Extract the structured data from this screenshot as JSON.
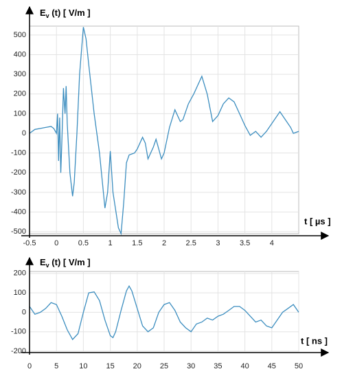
{
  "chart_data": [
    {
      "type": "line",
      "y_label": {
        "main": "E",
        "sub": "v",
        "rest": " (t) [ V/m ]"
      },
      "x_label": "t [ µs ]",
      "color": "#3b8dbf",
      "grid": true,
      "xlim": [
        -0.5,
        4.5
      ],
      "ylim": [
        -510,
        545
      ],
      "xticks": [
        -0.5,
        0,
        0.5,
        1,
        1.5,
        2,
        2.5,
        3,
        3.5,
        4
      ],
      "yticks": [
        -500,
        -400,
        -300,
        -200,
        -100,
        0,
        100,
        200,
        300,
        400,
        500
      ],
      "x": [
        -0.5,
        -0.4,
        -0.3,
        -0.2,
        -0.1,
        -0.05,
        0,
        0.02,
        0.04,
        0.06,
        0.08,
        0.1,
        0.13,
        0.16,
        0.18,
        0.2,
        0.25,
        0.3,
        0.33,
        0.38,
        0.43,
        0.5,
        0.55,
        0.6,
        0.7,
        0.8,
        0.9,
        0.95,
        1.0,
        1.05,
        1.15,
        1.2,
        1.25,
        1.3,
        1.35,
        1.45,
        1.5,
        1.6,
        1.65,
        1.7,
        1.8,
        1.85,
        1.9,
        1.95,
        2.0,
        2.1,
        2.2,
        2.3,
        2.35,
        2.45,
        2.55,
        2.7,
        2.8,
        2.9,
        3.0,
        3.1,
        3.2,
        3.3,
        3.4,
        3.5,
        3.6,
        3.7,
        3.8,
        3.9,
        4.0,
        4.15,
        4.25,
        4.35,
        4.4,
        4.5
      ],
      "values": [
        0,
        20,
        25,
        30,
        35,
        25,
        0,
        100,
        -140,
        80,
        -200,
        -50,
        230,
        100,
        240,
        50,
        -200,
        -320,
        -250,
        0,
        300,
        540,
        480,
        350,
        100,
        -100,
        -380,
        -300,
        -90,
        -300,
        -480,
        -510,
        -350,
        -150,
        -110,
        -100,
        -80,
        -20,
        -50,
        -130,
        -70,
        -30,
        -80,
        -130,
        -100,
        30,
        120,
        60,
        70,
        150,
        200,
        290,
        200,
        60,
        90,
        150,
        180,
        160,
        100,
        40,
        -10,
        10,
        -20,
        10,
        50,
        110,
        70,
        30,
        0,
        10
      ]
    },
    {
      "type": "line",
      "y_label": {
        "main": "E",
        "sub": "v",
        "rest": " (t) [ V/m ]"
      },
      "x_label": "t [ ns ]",
      "color": "#3b8dbf",
      "grid": true,
      "xlim": [
        0,
        50
      ],
      "ylim": [
        -200,
        210
      ],
      "xticks": [
        0,
        5,
        10,
        15,
        20,
        25,
        30,
        35,
        40,
        45,
        50
      ],
      "yticks": [
        -200,
        -100,
        0,
        100,
        200
      ],
      "x": [
        0,
        1,
        2,
        3,
        4,
        5,
        6,
        7,
        8,
        9,
        10,
        11,
        12,
        13,
        14,
        15,
        15.5,
        16,
        17,
        18,
        18.5,
        19,
        20,
        21,
        22,
        23,
        24,
        25,
        26,
        27,
        28,
        29,
        30,
        31,
        32,
        33,
        34,
        35,
        36,
        37,
        38,
        39,
        40,
        41,
        42,
        43,
        44,
        45,
        46,
        47,
        48,
        49,
        50
      ],
      "values": [
        30,
        -10,
        0,
        20,
        50,
        40,
        -20,
        -90,
        -140,
        -110,
        0,
        100,
        105,
        60,
        -40,
        -120,
        -130,
        -100,
        10,
        110,
        135,
        110,
        20,
        -70,
        -100,
        -80,
        0,
        40,
        50,
        10,
        -50,
        -80,
        -100,
        -60,
        -50,
        -30,
        -40,
        -20,
        -10,
        10,
        30,
        30,
        10,
        -20,
        -50,
        -40,
        -70,
        -80,
        -40,
        0,
        20,
        40,
        0
      ]
    }
  ]
}
